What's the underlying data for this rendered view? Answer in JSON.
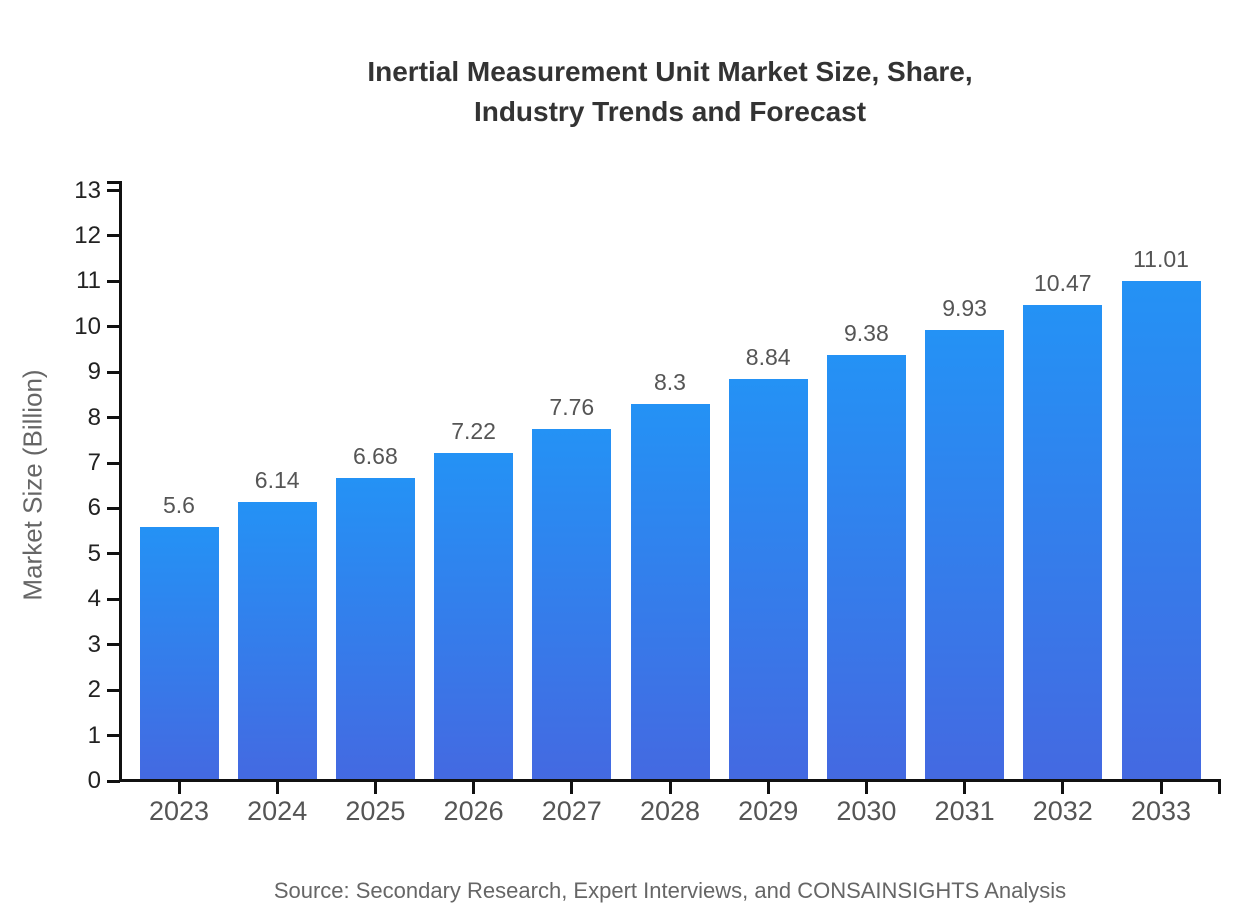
{
  "title": {
    "line1": "Inertial Measurement Unit Market Size, Share,",
    "line2": "Industry Trends and Forecast"
  },
  "source": "Source: Secondary Research, Expert Interviews, and CONSAINSIGHTS Analysis",
  "chart_data": {
    "type": "bar",
    "title": "Inertial Measurement Unit Market Size, Share, Industry Trends and Forecast",
    "categories": [
      "2023",
      "2024",
      "2025",
      "2026",
      "2027",
      "2028",
      "2029",
      "2030",
      "2031",
      "2032",
      "2033"
    ],
    "values": [
      5.6,
      6.14,
      6.68,
      7.22,
      7.76,
      8.3,
      8.84,
      9.38,
      9.93,
      10.47,
      11.01
    ],
    "value_labels": [
      "5.6",
      "6.14",
      "6.68",
      "7.22",
      "7.76",
      "8.3",
      "8.84",
      "9.38",
      "9.93",
      "10.47",
      "11.01"
    ],
    "xlabel": "",
    "ylabel": "Market Size (Billion)",
    "ylim": [
      0,
      13
    ],
    "yticks": [
      0,
      1,
      2,
      3,
      4,
      5,
      6,
      7,
      8,
      9,
      10,
      11,
      12,
      13
    ],
    "grid": false,
    "legend": "none",
    "colors": {
      "bar_gradient_top": "#2492F5",
      "bar_gradient_bottom": "#4469E1",
      "axis": "#111111",
      "ytick_label": "#222222",
      "xtick_label": "#555555",
      "value_label": "#555555",
      "title": "#333333",
      "axis_title": "#666666",
      "source": "#666666"
    }
  }
}
